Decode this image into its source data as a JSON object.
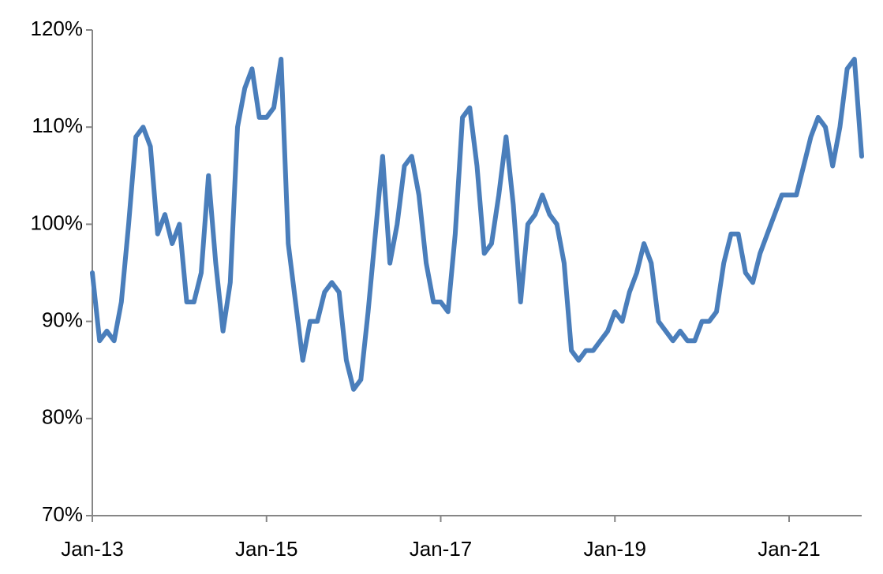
{
  "chart_data": {
    "type": "line",
    "x": [
      "2013-01",
      "2013-02",
      "2013-03",
      "2013-04",
      "2013-05",
      "2013-06",
      "2013-07",
      "2013-08",
      "2013-09",
      "2013-10",
      "2013-11",
      "2013-12",
      "2014-01",
      "2014-02",
      "2014-03",
      "2014-04",
      "2014-05",
      "2014-06",
      "2014-07",
      "2014-08",
      "2014-09",
      "2014-10",
      "2014-11",
      "2014-12",
      "2015-01",
      "2015-02",
      "2015-03",
      "2015-04",
      "2015-05",
      "2015-06",
      "2015-07",
      "2015-08",
      "2015-09",
      "2015-10",
      "2015-11",
      "2015-12",
      "2016-01",
      "2016-02",
      "2016-03",
      "2016-04",
      "2016-05",
      "2016-06",
      "2016-07",
      "2016-08",
      "2016-09",
      "2016-10",
      "2016-11",
      "2016-12",
      "2017-01",
      "2017-02",
      "2017-03",
      "2017-04",
      "2017-05",
      "2017-06",
      "2017-07",
      "2017-08",
      "2017-09",
      "2017-10",
      "2017-11",
      "2017-12",
      "2018-01",
      "2018-02",
      "2018-03",
      "2018-04",
      "2018-05",
      "2018-06",
      "2018-07",
      "2018-08",
      "2018-09",
      "2018-10",
      "2018-11",
      "2018-12",
      "2019-01",
      "2019-02",
      "2019-03",
      "2019-04",
      "2019-05",
      "2019-06",
      "2019-07",
      "2019-08",
      "2019-09",
      "2019-10",
      "2019-11",
      "2019-12",
      "2020-01",
      "2020-02",
      "2020-03",
      "2020-04",
      "2020-05",
      "2020-06",
      "2020-07",
      "2020-08",
      "2020-09",
      "2020-10",
      "2020-11",
      "2020-12",
      "2021-01",
      "2021-02",
      "2021-03",
      "2021-04",
      "2021-05",
      "2021-06",
      "2021-07",
      "2021-08",
      "2021-09",
      "2021-10",
      "2021-11"
    ],
    "series": [
      {
        "color": "#4a7ebb",
        "values": [
          95,
          88,
          89,
          88,
          92,
          100,
          109,
          110,
          108,
          99,
          101,
          98,
          100,
          92,
          92,
          95,
          105,
          96,
          89,
          94,
          110,
          114,
          116,
          111,
          111,
          112,
          117,
          98,
          92,
          86,
          90,
          90,
          93,
          94,
          93,
          86,
          83,
          84,
          91,
          99,
          107,
          96,
          100,
          106,
          107,
          103,
          96,
          92,
          92,
          91,
          99,
          111,
          112,
          106,
          97,
          98,
          103,
          109,
          102,
          92,
          100,
          101,
          103,
          101,
          100,
          96,
          87,
          86,
          87,
          87,
          88,
          89,
          91,
          90,
          93,
          95,
          98,
          96,
          90,
          89,
          88,
          89,
          88,
          88,
          90,
          90,
          91,
          96,
          99,
          99,
          95,
          94,
          97,
          99,
          101,
          103,
          103,
          103,
          106,
          109,
          111,
          110,
          106,
          110,
          116,
          117,
          107
        ]
      }
    ],
    "xlim": [
      "2013-01",
      "2021-11"
    ],
    "xticks": [
      {
        "value": "2013-01",
        "label": "Jan-13"
      },
      {
        "value": "2015-01",
        "label": "Jan-15"
      },
      {
        "value": "2017-01",
        "label": "Jan-17"
      },
      {
        "value": "2019-01",
        "label": "Jan-19"
      },
      {
        "value": "2021-01",
        "label": "Jan-21"
      }
    ],
    "ylim": [
      70,
      120
    ],
    "yticks": [
      {
        "value": 70,
        "label": "70%"
      },
      {
        "value": 80,
        "label": "80%"
      },
      {
        "value": 90,
        "label": "90%"
      },
      {
        "value": 100,
        "label": "100%"
      },
      {
        "value": 110,
        "label": "110%"
      },
      {
        "value": 120,
        "label": "120%"
      }
    ]
  }
}
